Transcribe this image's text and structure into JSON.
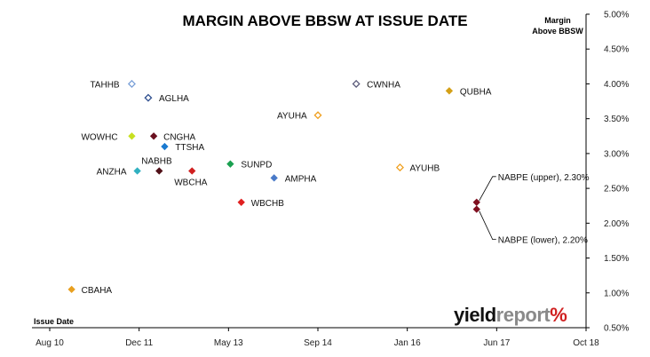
{
  "chart_data": {
    "type": "scatter",
    "title": "MARGIN ABOVE BBSW AT ISSUE DATE",
    "ylabel_lines": [
      "Margin",
      "Above BBSW"
    ],
    "xlabel": "Issue Date",
    "x_ticks": [
      "Aug 10",
      "Dec 11",
      "May 13",
      "Sep 14",
      "Jan 16",
      "Jun 17",
      "Oct 18"
    ],
    "y_ticks": [
      "5.00%",
      "4.50%",
      "4.00%",
      "3.50%",
      "3.00%",
      "2.50%",
      "2.00%",
      "1.50%",
      "1.00%",
      "0.50%"
    ],
    "ylim": [
      0.5,
      5.0
    ],
    "xlim": [
      "2010-08",
      "2018-10"
    ],
    "grid": false,
    "y_axis_side": "right",
    "points": [
      {
        "label": "TAHHB",
        "x": "2011-11",
        "y": 4.0,
        "color": "#7aa0d8",
        "hollow": true
      },
      {
        "label": "AGLHA",
        "x": "2012-02",
        "y": 3.8,
        "color": "#2f4f8f",
        "hollow": true
      },
      {
        "label": "CWNHA",
        "x": "2015-04",
        "y": 4.0,
        "color": "#5a5a7a",
        "hollow": true
      },
      {
        "label": "QUBHA",
        "x": "2016-09",
        "y": 3.9,
        "color": "#d4a017",
        "hollow": false
      },
      {
        "label": "AYUHA",
        "x": "2014-09",
        "y": 3.55,
        "color": "#f0a020",
        "hollow": true
      },
      {
        "label": "WOWHC",
        "x": "2011-11",
        "y": 3.25,
        "color": "#c8e020",
        "hollow": false
      },
      {
        "label": "CNGHA",
        "x": "2012-03",
        "y": 3.25,
        "color": "#6a1020",
        "hollow": false
      },
      {
        "label": "TTSHA",
        "x": "2012-05",
        "y": 3.1,
        "color": "#1a7ad0",
        "hollow": false
      },
      {
        "label": "SUNPD",
        "x": "2013-05",
        "y": 2.85,
        "color": "#1aa050",
        "hollow": false
      },
      {
        "label": "AYUHB",
        "x": "2015-12",
        "y": 2.8,
        "color": "#f0a020",
        "hollow": true
      },
      {
        "label": "ANZHA",
        "x": "2011-12",
        "y": 2.75,
        "color": "#30b0c0",
        "hollow": false
      },
      {
        "label": "NABHB",
        "x": "2012-04",
        "y": 2.75,
        "color": "#501018",
        "hollow": false
      },
      {
        "label": "WBCHA",
        "x": "2012-10",
        "y": 2.75,
        "color": "#d02020",
        "hollow": false
      },
      {
        "label": "AMPHA",
        "x": "2014-01",
        "y": 2.65,
        "color": "#4a7ac8",
        "hollow": false
      },
      {
        "label": "WBCHB",
        "x": "2013-07",
        "y": 2.3,
        "color": "#e02020",
        "hollow": false
      },
      {
        "label": "NABPE (upper), 2.30%",
        "x": "2017-02",
        "y": 2.3,
        "color": "#801020",
        "hollow": false
      },
      {
        "label": "NABPE (lower), 2.20%",
        "x": "2017-02",
        "y": 2.2,
        "color": "#801020",
        "hollow": false
      },
      {
        "label": "CBAHA",
        "x": "2010-12",
        "y": 1.05,
        "color": "#e8a020",
        "hollow": false
      }
    ]
  },
  "logo": {
    "part1": "yield",
    "part2": "report",
    "symbol": "%"
  }
}
